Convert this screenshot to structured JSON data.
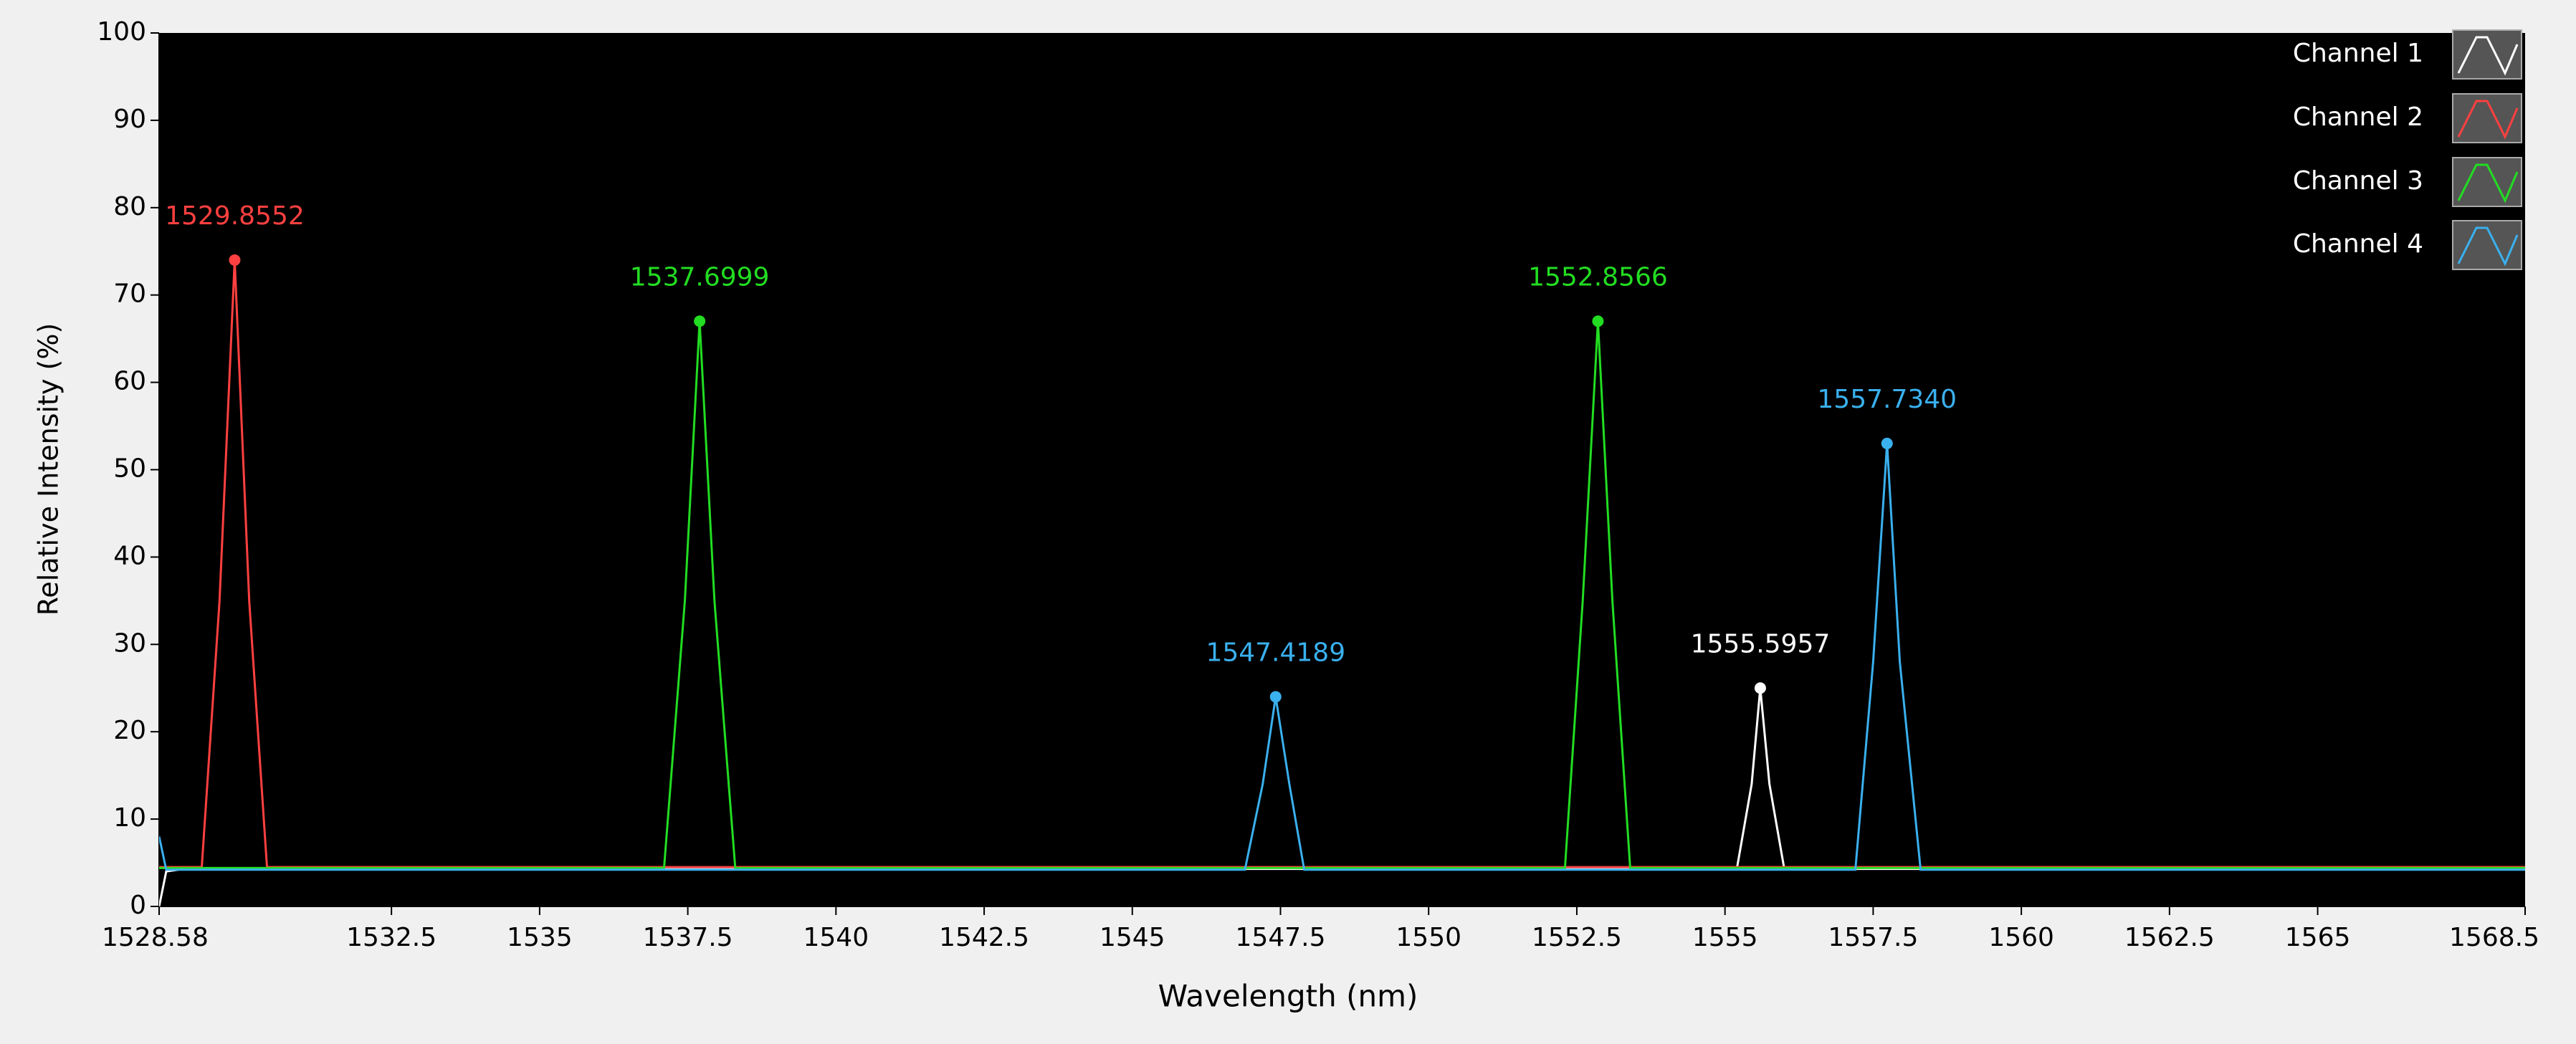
{
  "chart_data": {
    "type": "line",
    "xlabel": "Wavelength (nm)",
    "ylabel": "Relative Intensity (%)",
    "xlim": [
      1528.58,
      1568.5
    ],
    "xticks": [
      1528.58,
      1532.5,
      1535,
      1537.5,
      1540,
      1542.5,
      1545,
      1547.5,
      1550,
      1552.5,
      1555,
      1557.5,
      1560,
      1562.5,
      1565,
      1568.5
    ],
    "ylim": [
      0,
      100
    ],
    "yticks": [
      0,
      10,
      20,
      30,
      40,
      50,
      60,
      70,
      80,
      90,
      100
    ],
    "grid": false,
    "legend": "top-right",
    "series": [
      {
        "name": "Channel 1",
        "color": "#ffffff",
        "x": [
          1528.58,
          1528.7,
          1529.0,
          1555.2,
          1555.45,
          1555.5957,
          1555.75,
          1556.0,
          1568.5
        ],
        "values": [
          0,
          4,
          4.3,
          4.3,
          14,
          25,
          14,
          4.3,
          4.3
        ],
        "peak_x": [
          1555.5957
        ],
        "peak_values": [
          25
        ],
        "peak_labels": [
          "1555.5957"
        ]
      },
      {
        "name": "Channel 2",
        "color": "#ff4040",
        "x": [
          1528.58,
          1529.3,
          1529.6,
          1529.8552,
          1530.1,
          1530.4,
          1568.5
        ],
        "values": [
          4.5,
          4.5,
          35,
          74,
          35,
          4.5,
          4.5
        ],
        "peak_x": [
          1529.8552
        ],
        "peak_values": [
          74
        ],
        "peak_labels": [
          "1529.8552"
        ]
      },
      {
        "name": "Channel 3",
        "color": "#22dd22",
        "x": [
          1528.58,
          1537.1,
          1537.45,
          1537.6999,
          1537.95,
          1538.3,
          1552.3,
          1552.6,
          1552.8566,
          1553.1,
          1553.4,
          1568.5
        ],
        "values": [
          4.4,
          4.4,
          35,
          67,
          35,
          4.4,
          4.4,
          35,
          67,
          35,
          4.4,
          4.4
        ],
        "peak_x": [
          1537.6999,
          1552.8566
        ],
        "peak_values": [
          67,
          67
        ],
        "peak_labels": [
          "1537.6999",
          "1552.8566"
        ]
      },
      {
        "name": "Channel 4",
        "color": "#3ab0ee",
        "x": [
          1528.58,
          1528.7,
          1546.9,
          1547.2,
          1547.4189,
          1547.65,
          1547.9,
          1557.2,
          1557.5,
          1557.734,
          1557.95,
          1558.3,
          1568.5
        ],
        "values": [
          8,
          4.2,
          4.2,
          14,
          24,
          14,
          4.2,
          4.2,
          28,
          53,
          28,
          4.2,
          4.2
        ],
        "peak_x": [
          1547.4189,
          1557.734
        ],
        "peak_values": [
          24,
          53
        ],
        "peak_labels": [
          "1547.4189",
          "1557.7340"
        ]
      }
    ]
  }
}
